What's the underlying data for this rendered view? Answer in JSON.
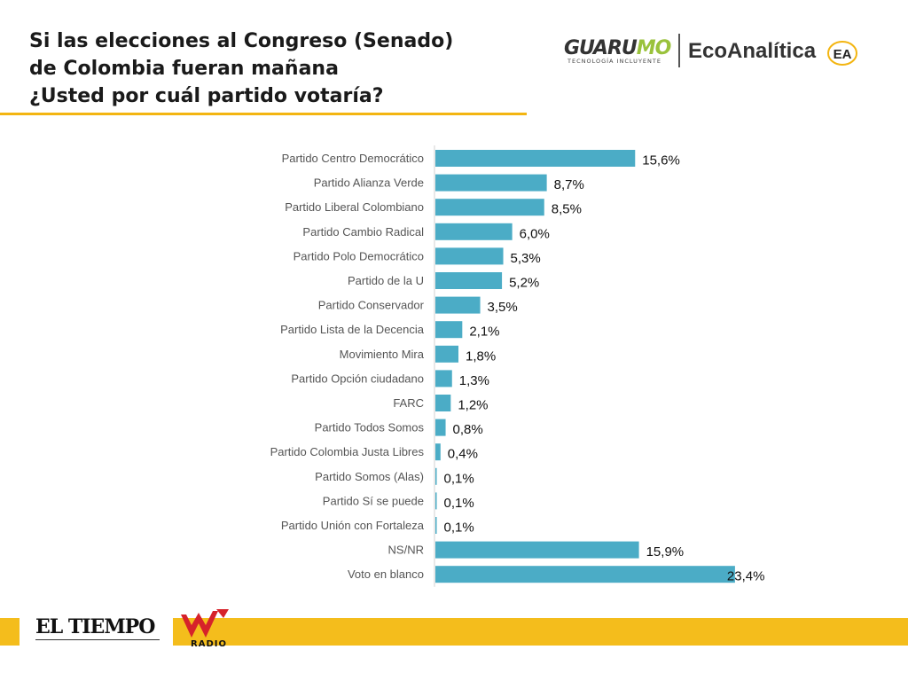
{
  "header": {
    "title_lines": [
      "Si las elecciones al Congreso (Senado)",
      "de Colombia fueran mañana",
      "¿Usted por cuál partido votaría?"
    ]
  },
  "logos": {
    "guarumo_main": "GUARU",
    "guarumo_accent": "MO",
    "guarumo_tagline": "TECNOLOGÍA INCLUYENTE",
    "ecoanalitica": "EcoAnalítica",
    "ecoanalitica_mark": "EA"
  },
  "footer": {
    "eltiempo": "EL TIEMPO",
    "wradio": "RADIO"
  },
  "colors": {
    "bar": "#4bacc6",
    "accent": "#f4bd1c"
  },
  "chart_data": {
    "type": "bar",
    "orientation": "horizontal",
    "title": "",
    "xlabel": "",
    "ylabel": "",
    "grid": false,
    "legend": "none",
    "xlim": [
      0,
      25
    ],
    "categories": [
      "Partido Centro Democrático",
      "Partido Alianza  Verde",
      "Partido Liberal Colombiano",
      "Partido Cambio Radical",
      "Partido Polo Democrático",
      "Partido de la U",
      "Partido Conservador",
      "Partido Lista de la Decencia",
      "Movimiento Mira",
      "Partido Opción ciudadano",
      "FARC",
      "Partido Todos Somos",
      "Partido Colombia Justa Libres",
      "Partido Somos (Alas)",
      "Partido Sí se puede",
      "Partido Unión con Fortaleza",
      "NS/NR",
      "Voto en blanco"
    ],
    "values": [
      15.6,
      8.7,
      8.5,
      6.0,
      5.3,
      5.2,
      3.5,
      2.1,
      1.8,
      1.3,
      1.2,
      0.8,
      0.4,
      0.1,
      0.1,
      0.1,
      15.9,
      23.4
    ],
    "data_labels": [
      "15,6%",
      "8,7%",
      "8,5%",
      "6,0%",
      "5,3%",
      "5,2%",
      "3,5%",
      "2,1%",
      "1,8%",
      "1,3%",
      "1,2%",
      "0,8%",
      "0,4%",
      "0,1%",
      "0,1%",
      "0,1%",
      "15,9%",
      "23,4%"
    ]
  }
}
